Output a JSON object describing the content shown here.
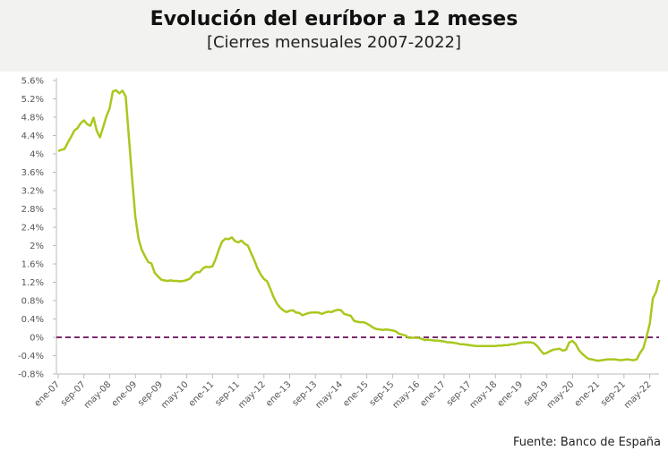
{
  "header": {
    "title": "Evolución del euríbor a 12 meses",
    "subtitle": "[Cierres mensuales 2007-2022]"
  },
  "source": "Fuente: Banco de España",
  "chart_data": {
    "type": "line",
    "title": "Evolución del euríbor a 12 meses",
    "subtitle": "[Cierres mensuales 2007-2022]",
    "xlabel": "",
    "ylabel": "",
    "ylim": [
      -0.8,
      5.6
    ],
    "y_ticks": [
      "5.6%",
      "5.2%",
      "4.8%",
      "4.4%",
      "4%",
      "3.6%",
      "3.2%",
      "2.8%",
      "2.4%",
      "2%",
      "1.6%",
      "1.2%",
      "0.8%",
      "0.4%",
      "0%",
      "-0.4%",
      "-0.8%"
    ],
    "y_tick_values": [
      5.6,
      5.2,
      4.8,
      4.4,
      4.0,
      3.6,
      3.2,
      2.8,
      2.4,
      2.0,
      1.6,
      1.2,
      0.8,
      0.4,
      0,
      -0.4,
      -0.8
    ],
    "x_ticks": [
      "ene-07",
      "sep-07",
      "may-08",
      "ene-09",
      "sep-09",
      "may-10",
      "ene-11",
      "sep-11",
      "may-12",
      "ene-13",
      "sep-13",
      "may-14",
      "ene-15",
      "sep-15",
      "may-16",
      "ene-17",
      "sep-17",
      "may-18",
      "ene-19",
      "sep-19",
      "may-20",
      "ene-21",
      "sep-21",
      "may-22"
    ],
    "x_tick_interval_months": 8,
    "start": "ene-07",
    "end": "ago-22",
    "grid": false,
    "reference_line": {
      "value": 0,
      "style": "dashed",
      "color": "#7a2a6e"
    },
    "series": [
      {
        "name": "Euríbor 12 meses",
        "color": "#a8c81e",
        "values": [
          4.06,
          4.09,
          4.11,
          4.25,
          4.37,
          4.51,
          4.56,
          4.67,
          4.73,
          4.65,
          4.61,
          4.79,
          4.5,
          4.36,
          4.59,
          4.82,
          4.99,
          5.36,
          5.39,
          5.32,
          5.38,
          5.25,
          4.35,
          3.45,
          2.62,
          2.14,
          1.91,
          1.77,
          1.64,
          1.61,
          1.41,
          1.33,
          1.26,
          1.24,
          1.23,
          1.24,
          1.23,
          1.23,
          1.22,
          1.23,
          1.25,
          1.28,
          1.37,
          1.42,
          1.42,
          1.5,
          1.54,
          1.53,
          1.55,
          1.71,
          1.92,
          2.09,
          2.15,
          2.14,
          2.18,
          2.1,
          2.07,
          2.11,
          2.04,
          2.0,
          1.84,
          1.68,
          1.5,
          1.37,
          1.27,
          1.22,
          1.06,
          0.88,
          0.74,
          0.65,
          0.59,
          0.55,
          0.58,
          0.59,
          0.54,
          0.53,
          0.48,
          0.51,
          0.53,
          0.54,
          0.54,
          0.54,
          0.51,
          0.54,
          0.56,
          0.55,
          0.58,
          0.6,
          0.59,
          0.51,
          0.49,
          0.47,
          0.36,
          0.34,
          0.33,
          0.33,
          0.3,
          0.26,
          0.21,
          0.18,
          0.17,
          0.16,
          0.17,
          0.16,
          0.15,
          0.13,
          0.08,
          0.06,
          0.04,
          -0.01,
          -0.01,
          -0.01,
          -0.01,
          -0.03,
          -0.06,
          -0.05,
          -0.06,
          -0.07,
          -0.07,
          -0.08,
          -0.09,
          -0.11,
          -0.11,
          -0.12,
          -0.13,
          -0.15,
          -0.15,
          -0.16,
          -0.17,
          -0.18,
          -0.19,
          -0.19,
          -0.19,
          -0.19,
          -0.19,
          -0.19,
          -0.19,
          -0.18,
          -0.18,
          -0.17,
          -0.17,
          -0.15,
          -0.15,
          -0.13,
          -0.12,
          -0.11,
          -0.11,
          -0.11,
          -0.13,
          -0.19,
          -0.28,
          -0.36,
          -0.34,
          -0.3,
          -0.27,
          -0.26,
          -0.25,
          -0.29,
          -0.27,
          -0.11,
          -0.08,
          -0.15,
          -0.28,
          -0.36,
          -0.42,
          -0.47,
          -0.48,
          -0.5,
          -0.51,
          -0.5,
          -0.49,
          -0.48,
          -0.48,
          -0.48,
          -0.49,
          -0.5,
          -0.49,
          -0.48,
          -0.49,
          -0.5,
          -0.48,
          -0.34,
          -0.24,
          0.01,
          0.29,
          0.85,
          0.99,
          1.25
        ]
      }
    ]
  }
}
